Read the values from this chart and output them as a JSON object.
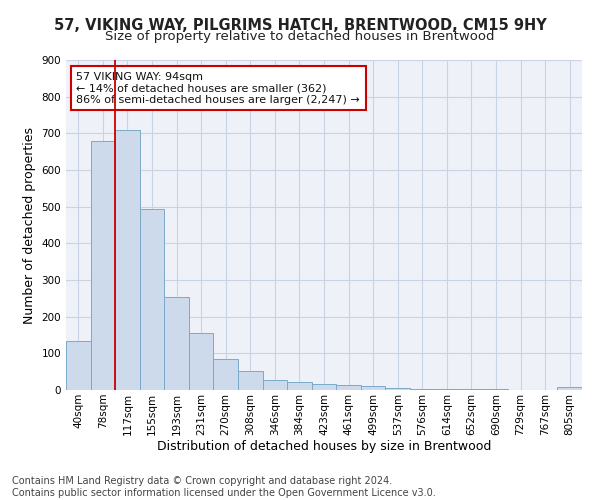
{
  "title": "57, VIKING WAY, PILGRIMS HATCH, BRENTWOOD, CM15 9HY",
  "subtitle": "Size of property relative to detached houses in Brentwood",
  "xlabel": "Distribution of detached houses by size in Brentwood",
  "ylabel": "Number of detached properties",
  "footer_line1": "Contains HM Land Registry data © Crown copyright and database right 2024.",
  "footer_line2": "Contains public sector information licensed under the Open Government Licence v3.0.",
  "bar_labels": [
    "40sqm",
    "78sqm",
    "117sqm",
    "155sqm",
    "193sqm",
    "231sqm",
    "270sqm",
    "308sqm",
    "346sqm",
    "384sqm",
    "423sqm",
    "461sqm",
    "499sqm",
    "537sqm",
    "576sqm",
    "614sqm",
    "652sqm",
    "690sqm",
    "729sqm",
    "767sqm",
    "805sqm"
  ],
  "bar_values": [
    135,
    680,
    710,
    493,
    253,
    155,
    85,
    52,
    27,
    22,
    17,
    13,
    11,
    6,
    4,
    3,
    2,
    2,
    1,
    1,
    8
  ],
  "bar_color": "#ccdaeb",
  "bar_edge_color": "#7aaac8",
  "grid_color": "#c8d4e4",
  "background_color": "#eef2f8",
  "annotation_line1": "57 VIKING WAY: 94sqm",
  "annotation_line2": "← 14% of detached houses are smaller (362)",
  "annotation_line3": "86% of semi-detached houses are larger (2,247) →",
  "annotation_box_color": "#cc0000",
  "annotation_box_bg": "#ffffff",
  "red_line_x": 1.5,
  "ylim": [
    0,
    900
  ],
  "yticks": [
    0,
    100,
    200,
    300,
    400,
    500,
    600,
    700,
    800,
    900
  ],
  "title_fontsize": 10.5,
  "subtitle_fontsize": 9.5,
  "axis_label_fontsize": 9,
  "tick_fontsize": 7.5,
  "footer_fontsize": 7,
  "annot_fontsize": 8
}
